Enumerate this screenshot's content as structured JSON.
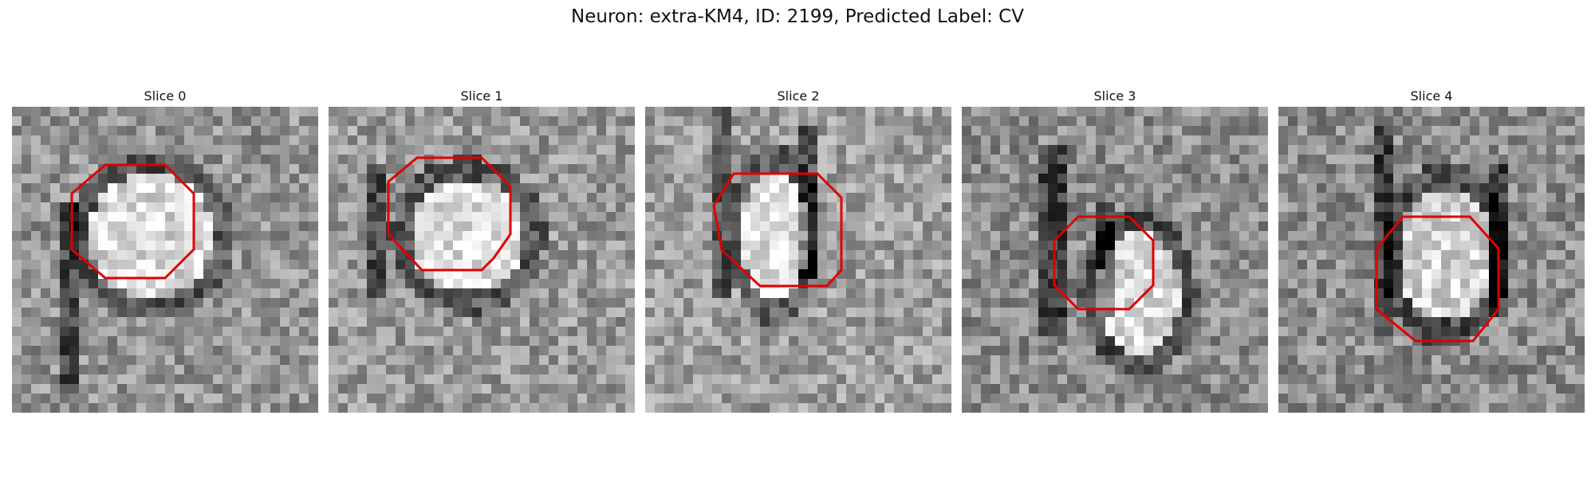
{
  "figure": {
    "title": "Neuron: extra-KM4, ID: 2199, Predicted Label: CV"
  },
  "panels": [
    {
      "title": "Slice 0",
      "contour": "red octagon outline"
    },
    {
      "title": "Slice 1",
      "contour": "red octagon outline"
    },
    {
      "title": "Slice 2",
      "contour": "red octagon outline"
    },
    {
      "title": "Slice 3",
      "contour": "red octagon outline"
    },
    {
      "title": "Slice 4",
      "contour": "red octagon outline"
    }
  ],
  "colors": {
    "contour": "#e00000",
    "colormap": "gray"
  }
}
